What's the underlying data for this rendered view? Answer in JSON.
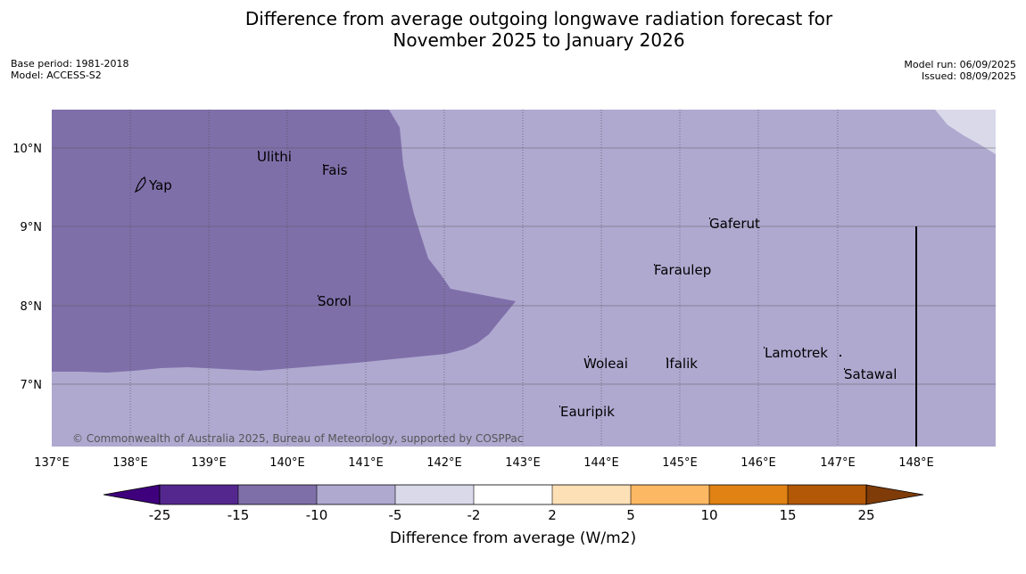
{
  "title": {
    "line1": "Difference from average outgoing longwave radiation forecast for",
    "line2": "November 2025 to January 2026"
  },
  "meta_left": {
    "base_period": "Base period: 1981-2018",
    "model": "Model: ACCESS-S2"
  },
  "meta_right": {
    "model_run": "Model run: 06/09/2025",
    "issued": "Issued: 08/09/2025"
  },
  "map": {
    "lon_labels": [
      "137°E",
      "138°E",
      "139°E",
      "140°E",
      "141°E",
      "142°E",
      "143°E",
      "144°E",
      "145°E",
      "146°E",
      "147°E",
      "148°E"
    ],
    "lat_labels": [
      "10°N",
      "9°N",
      "8°N",
      "7°N"
    ],
    "places": [
      {
        "name": "Yap"
      },
      {
        "name": "Ulithi"
      },
      {
        "name": "Fais"
      },
      {
        "name": "Gaferut"
      },
      {
        "name": "Faraulep"
      },
      {
        "name": "Sorol"
      },
      {
        "name": "Lamotrek"
      },
      {
        "name": "Woleai"
      },
      {
        "name": "Ifalik"
      },
      {
        "name": "Satawal"
      },
      {
        "name": "Eauripik"
      }
    ],
    "copyright": "© Commonwealth of Australia 2025, Bureau of Meteorology, supported by COSPPac"
  },
  "colorbar": {
    "colors": [
      "#3f007d",
      "#54278f",
      "#7f6fa9",
      "#afa9d0",
      "#d9d9ea",
      "#ffffff",
      "#fee0b6",
      "#fdb863",
      "#e08214",
      "#b35806",
      "#7f3b08"
    ],
    "tick_labels": [
      "-25",
      "-15",
      "-10",
      "-5",
      "-2",
      "2",
      "5",
      "10",
      "15",
      "25"
    ],
    "title": "Difference from average (W/m2)"
  }
}
